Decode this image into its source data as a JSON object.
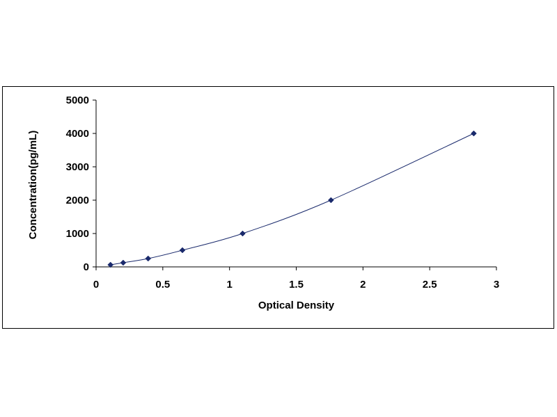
{
  "chart_data": {
    "type": "scatter",
    "title": "",
    "xlabel": "Optical Density",
    "ylabel": "Concentration(pg/mL)",
    "xlim": [
      0,
      3
    ],
    "ylim": [
      0,
      5000
    ],
    "x_ticks": [
      "0",
      "0.5",
      "1",
      "1.5",
      "2",
      "2.5",
      "3"
    ],
    "y_ticks": [
      "0",
      "1000",
      "2000",
      "3000",
      "4000",
      "5000"
    ],
    "grid": false,
    "legend": "none",
    "series": [
      {
        "marker": "diamond",
        "trendline": "smooth curve",
        "color": "#1a2a6c",
        "points": [
          {
            "x": 0.108,
            "y": 62.5
          },
          {
            "x": 0.203,
            "y": 125
          },
          {
            "x": 0.39,
            "y": 250
          },
          {
            "x": 0.647,
            "y": 500
          },
          {
            "x": 1.098,
            "y": 1000
          },
          {
            "x": 1.76,
            "y": 2000
          },
          {
            "x": 2.83,
            "y": 4000
          }
        ]
      }
    ]
  }
}
